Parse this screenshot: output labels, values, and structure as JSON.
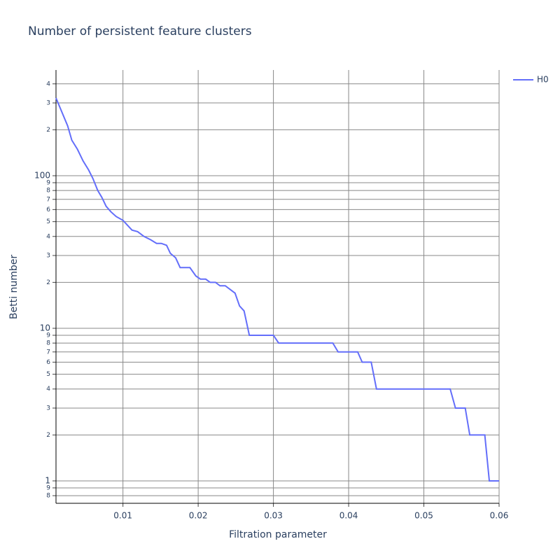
{
  "chart_data": {
    "type": "line",
    "title": "Number of persistent feature clusters",
    "x_label": "Filtration parameter",
    "y_label": "Betti number",
    "y_scale": "log",
    "grid": true,
    "legend_position": "top-right",
    "xlim": [
      0.0011,
      0.06
    ],
    "ylim": [
      0.713,
      493
    ],
    "xticks": [
      0.01,
      0.02,
      0.03,
      0.04,
      0.05,
      0.06
    ],
    "yticks": [
      {
        "value": 0.8,
        "label": "8"
      },
      {
        "value": 0.9,
        "label": "9"
      },
      1,
      {
        "value": 2,
        "label": "2"
      },
      {
        "value": 3,
        "label": "3"
      },
      {
        "value": 4,
        "label": "4"
      },
      {
        "value": 5,
        "label": "5"
      },
      {
        "value": 6,
        "label": "6"
      },
      {
        "value": 7,
        "label": "7"
      },
      {
        "value": 8,
        "label": "8"
      },
      {
        "value": 9,
        "label": "9"
      },
      10,
      {
        "value": 20,
        "label": "2"
      },
      {
        "value": 30,
        "label": "3"
      },
      {
        "value": 40,
        "label": "4"
      },
      {
        "value": 50,
        "label": "5"
      },
      {
        "value": 60,
        "label": "6"
      },
      {
        "value": 70,
        "label": "7"
      },
      {
        "value": 80,
        "label": "8"
      },
      {
        "value": 90,
        "label": "9"
      },
      100,
      {
        "value": 200,
        "label": "2"
      },
      {
        "value": 300,
        "label": "3"
      },
      {
        "value": 400,
        "label": "4"
      }
    ],
    "x": [
      0.0011,
      0.00265,
      0.0032,
      0.00395,
      0.0047,
      0.00544,
      0.006,
      0.00665,
      0.0072,
      0.00777,
      0.0084,
      0.0091,
      0.01,
      0.0112,
      0.01195,
      0.0128,
      0.0137,
      0.01447,
      0.0151,
      0.0158,
      0.0163,
      0.017,
      0.0176,
      0.0189,
      0.0197,
      0.0203,
      0.021,
      0.0216,
      0.0223,
      0.0229,
      0.0236,
      0.0249,
      0.0255,
      0.0261,
      0.0268,
      0.03,
      0.0307,
      0.0379,
      0.0386,
      0.0412,
      0.0418,
      0.043,
      0.0437,
      0.0535,
      0.0542,
      0.0555,
      0.0561,
      0.0581,
      0.0587,
      0.06
    ],
    "series": [
      {
        "name": "H0",
        "color": "#636efa",
        "values": [
          323,
          212,
          171,
          149,
          125,
          109,
          96,
          80,
          72,
          63,
          58,
          54,
          51,
          44,
          43,
          40,
          38,
          36,
          36,
          35,
          31,
          29,
          25,
          25,
          22,
          21,
          21,
          20,
          20,
          19,
          19,
          17,
          14,
          13,
          9,
          9,
          8,
          8,
          7,
          7,
          6,
          6,
          4,
          4,
          3,
          3,
          2,
          2,
          1,
          1
        ]
      }
    ]
  }
}
